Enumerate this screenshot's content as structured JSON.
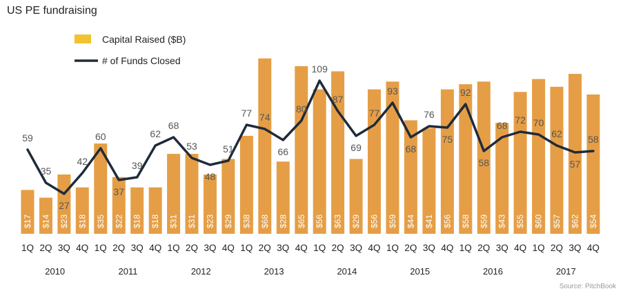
{
  "chart_data": {
    "type": "bar+line",
    "title": "US PE fundraising",
    "source": "Source: PitchBook",
    "legend": {
      "bar_label": "Capital Raised ($B)",
      "line_label": "# of Funds Closed",
      "placement": "top-left"
    },
    "colors": {
      "bar": "#E59E46",
      "line": "#1F2B3A",
      "legend_bar": "#F2C230",
      "bar_label_text": "#FFFFFF",
      "line_label_text": "#555555"
    },
    "quarters": [
      "1Q",
      "2Q",
      "3Q",
      "4Q",
      "1Q",
      "2Q",
      "3Q",
      "4Q",
      "1Q",
      "2Q",
      "3Q",
      "4Q",
      "1Q",
      "2Q",
      "3Q",
      "4Q",
      "1Q",
      "2Q",
      "3Q",
      "4Q",
      "1Q",
      "2Q",
      "3Q",
      "4Q",
      "1Q",
      "2Q",
      "3Q",
      "4Q",
      "1Q",
      "2Q",
      "3Q",
      "4Q"
    ],
    "years": [
      "2010",
      "2011",
      "2012",
      "2013",
      "2014",
      "2015",
      "2016",
      "2017"
    ],
    "bar_value_labels": [
      "$17",
      "$14",
      "$23",
      "$18",
      "$35",
      "$22",
      "$18",
      "$18",
      "$31",
      "$31",
      "$23",
      "$29",
      "$38",
      "$68",
      "$28",
      "$65",
      "$56",
      "$63",
      "$29",
      "$56",
      "$59",
      "$44",
      "$41",
      "$56",
      "$58",
      "$59",
      "$43",
      "$55",
      "$60",
      "$57",
      "$62",
      "$54"
    ],
    "series": [
      {
        "name": "Capital Raised ($B)",
        "kind": "bar",
        "values": [
          17,
          14,
          23,
          18,
          35,
          22,
          18,
          18,
          31,
          31,
          23,
          29,
          38,
          68,
          28,
          65,
          56,
          63,
          29,
          56,
          59,
          44,
          41,
          56,
          58,
          59,
          43,
          55,
          60,
          57,
          62,
          54
        ]
      },
      {
        "name": "# of Funds Closed",
        "kind": "line",
        "values": [
          59,
          35,
          27,
          42,
          60,
          37,
          39,
          62,
          68,
          53,
          48,
          51,
          77,
          74,
          66,
          80,
          109,
          87,
          69,
          77,
          93,
          68,
          76,
          75,
          92,
          58,
          68,
          72,
          70,
          62,
          57,
          58
        ]
      }
    ],
    "ylim_bar": [
      0,
      80
    ],
    "ylim_line": [
      0,
      130
    ],
    "grid": false
  }
}
